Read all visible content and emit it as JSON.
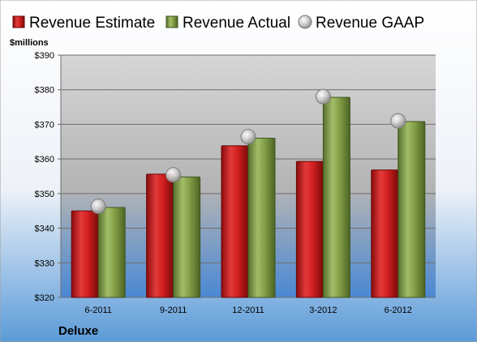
{
  "chart_data": {
    "type": "bar",
    "categories": [
      "6-2011",
      "9-2011",
      "12-2011",
      "3-2012",
      "6-2012"
    ],
    "series": [
      {
        "name": "Revenue Estimate",
        "values": [
          345,
          355.6,
          363.8,
          359.3,
          356.8
        ],
        "color": "#d42020"
      },
      {
        "name": "Revenue Actual",
        "values": [
          346,
          354.8,
          366,
          377.8,
          370.8
        ],
        "color": "#84a048"
      }
    ],
    "markers": [
      {
        "name": "Revenue GAAP",
        "values": [
          346.3,
          355.4,
          366.4,
          378,
          371
        ],
        "color": "#c8c8c8"
      }
    ],
    "ylabel": "$millions",
    "ylim": [
      320,
      390
    ],
    "yticks": [
      "$320",
      "$330",
      "$340",
      "$350",
      "$360",
      "$370",
      "$380",
      "$390"
    ],
    "ytick_values": [
      320,
      330,
      340,
      350,
      360,
      370,
      380,
      390
    ],
    "company": "Deluxe",
    "legend_position": "top",
    "grid": true
  }
}
